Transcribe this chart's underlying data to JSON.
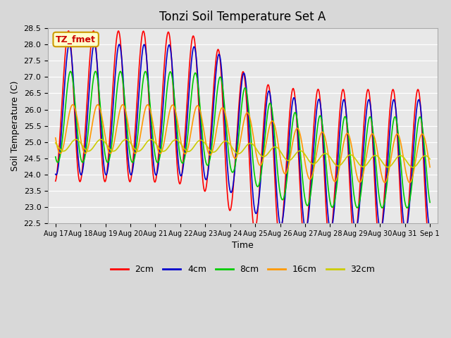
{
  "title": "Tonzi Soil Temperature Set A",
  "xlabel": "Time",
  "ylabel": "Soil Temperature (C)",
  "ylim": [
    22.5,
    28.5
  ],
  "yticks": [
    22.5,
    23.0,
    23.5,
    24.0,
    24.5,
    25.0,
    25.5,
    26.0,
    26.5,
    27.0,
    27.5,
    28.0,
    28.5
  ],
  "series_colors": {
    "2cm": "#ff0000",
    "4cm": "#0000cc",
    "8cm": "#00cc00",
    "16cm": "#ff9900",
    "32cm": "#cccc00"
  },
  "series_labels": [
    "2cm",
    "4cm",
    "8cm",
    "16cm",
    "32cm"
  ],
  "xtick_labels": [
    "Aug 17",
    "Aug 18",
    "Aug 19",
    "Aug 20",
    "Aug 21",
    "Aug 22",
    "Aug 23",
    "Aug 24",
    "Aug 25",
    "Aug 26",
    "Aug 27",
    "Aug 28",
    "Aug 29",
    "Aug 30",
    "Aug 31",
    "Sep 1"
  ],
  "fig_bg_color": "#d8d8d8",
  "plot_bg_color": "#e8e8e8",
  "annotation_text": "TZ_fmet",
  "annotation_bg": "#ffffcc",
  "annotation_border": "#cc9900"
}
